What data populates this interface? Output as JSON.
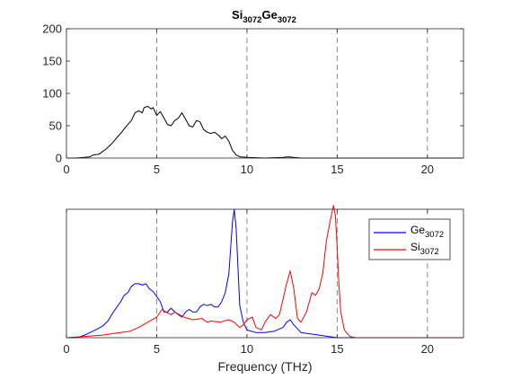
{
  "chart_data": [
    {
      "type": "line",
      "title": {
        "base1": "Si",
        "sub1": "3072",
        "base2": "Ge",
        "sub2": "3072"
      },
      "xlabel": "",
      "ylabel": "",
      "xlim": [
        0,
        22
      ],
      "ylim": [
        0,
        200
      ],
      "xticks": [
        0,
        5,
        10,
        15,
        20
      ],
      "yticks": [
        0,
        50,
        100,
        150,
        200
      ],
      "vlines": [
        5,
        10,
        15,
        20
      ],
      "grid": false,
      "series": [
        {
          "color": "#000000",
          "x": [
            0,
            0.5,
            1.0,
            1.3,
            1.5,
            1.8,
            2.0,
            2.2,
            2.5,
            2.8,
            3.0,
            3.2,
            3.4,
            3.6,
            3.8,
            4.0,
            4.2,
            4.3,
            4.5,
            4.7,
            4.8,
            5.0,
            5.2,
            5.4,
            5.6,
            5.8,
            6.0,
            6.2,
            6.4,
            6.6,
            6.8,
            7.0,
            7.2,
            7.4,
            7.6,
            7.8,
            8.0,
            8.2,
            8.4,
            8.6,
            8.8,
            9.0,
            9.2,
            9.4,
            9.6,
            10.0,
            11.0,
            12.0,
            12.3,
            12.6,
            13.0,
            14.0,
            15.0,
            16.0,
            18.0,
            20.0,
            22.0
          ],
          "values": [
            0,
            0,
            1,
            2,
            5,
            6,
            10,
            14,
            22,
            32,
            38,
            45,
            52,
            58,
            70,
            73,
            70,
            78,
            80,
            76,
            78,
            66,
            72,
            62,
            52,
            50,
            58,
            62,
            70,
            60,
            50,
            48,
            58,
            56,
            44,
            40,
            38,
            40,
            36,
            30,
            34,
            26,
            12,
            5,
            2,
            1,
            0,
            1,
            2,
            1,
            0,
            0,
            0,
            0,
            0,
            0,
            0
          ]
        }
      ]
    },
    {
      "type": "line",
      "title": "",
      "xlabel": "Frequency (THz)",
      "ylabel": "",
      "xlim": [
        0,
        22
      ],
      "ylim": [
        0,
        1
      ],
      "xticks": [
        0,
        5,
        10,
        15,
        20
      ],
      "yticks": [],
      "vlines": [
        5,
        10,
        15,
        20
      ],
      "grid": false,
      "legend_position": "top-right",
      "series": [
        {
          "name_base": "Ge",
          "name_sub": "3072",
          "color": "#0000ff",
          "x": [
            0,
            0.5,
            0.8,
            1.0,
            1.3,
            1.6,
            2.0,
            2.3,
            2.6,
            2.8,
            3.0,
            3.2,
            3.4,
            3.6,
            3.8,
            4.0,
            4.2,
            4.4,
            4.6,
            4.8,
            5.0,
            5.2,
            5.4,
            5.6,
            5.8,
            6.0,
            6.2,
            6.4,
            6.6,
            6.8,
            7.0,
            7.2,
            7.4,
            7.6,
            7.8,
            8.0,
            8.2,
            8.4,
            8.6,
            8.8,
            9.0,
            9.1,
            9.2,
            9.3,
            9.4,
            9.5,
            9.6,
            9.8,
            10.0,
            10.5,
            11.0,
            11.5,
            12.0,
            12.2,
            12.4,
            12.6,
            13.0,
            13.5,
            14.0,
            14.5,
            15.0,
            15.5,
            16.0,
            18.0,
            20.0,
            22.0
          ],
          "values": [
            0,
            0,
            0.01,
            0.02,
            0.04,
            0.06,
            0.09,
            0.13,
            0.2,
            0.24,
            0.28,
            0.33,
            0.35,
            0.4,
            0.42,
            0.42,
            0.41,
            0.42,
            0.38,
            0.36,
            0.32,
            0.28,
            0.2,
            0.2,
            0.23,
            0.2,
            0.18,
            0.16,
            0.2,
            0.22,
            0.2,
            0.2,
            0.24,
            0.26,
            0.25,
            0.26,
            0.24,
            0.24,
            0.28,
            0.35,
            0.5,
            0.7,
            0.9,
            1.0,
            0.85,
            0.55,
            0.25,
            0.12,
            0.06,
            0.04,
            0.04,
            0.05,
            0.08,
            0.12,
            0.14,
            0.1,
            0.04,
            0.03,
            0.02,
            0.01,
            0,
            0,
            0,
            0,
            0,
            0
          ]
        },
        {
          "name_base": "Si",
          "name_sub": "3072",
          "color": "#ff0000",
          "x": [
            0,
            1.0,
            2.0,
            3.0,
            3.5,
            4.0,
            4.5,
            5.0,
            5.3,
            5.5,
            5.8,
            6.0,
            6.5,
            7.0,
            7.5,
            7.8,
            8.0,
            8.5,
            9.0,
            9.3,
            9.6,
            9.8,
            10.0,
            10.3,
            10.5,
            10.8,
            11.0,
            11.3,
            11.6,
            11.8,
            12.0,
            12.2,
            12.4,
            12.6,
            12.8,
            13.0,
            13.3,
            13.6,
            13.8,
            14.0,
            14.2,
            14.4,
            14.6,
            14.8,
            14.9,
            15.0,
            15.1,
            15.2,
            15.4,
            15.7,
            16.0,
            18.0,
            20.0,
            22.0
          ],
          "values": [
            0,
            0.01,
            0.02,
            0.04,
            0.05,
            0.08,
            0.12,
            0.16,
            0.22,
            0.2,
            0.18,
            0.2,
            0.16,
            0.14,
            0.15,
            0.12,
            0.13,
            0.12,
            0.14,
            0.12,
            0.08,
            0.1,
            0.14,
            0.16,
            0.08,
            0.06,
            0.12,
            0.18,
            0.15,
            0.18,
            0.3,
            0.42,
            0.52,
            0.38,
            0.15,
            0.12,
            0.2,
            0.35,
            0.33,
            0.38,
            0.5,
            0.75,
            0.9,
            1.03,
            0.95,
            0.7,
            0.4,
            0.2,
            0.06,
            0.01,
            0,
            0,
            0,
            0
          ]
        }
      ]
    }
  ]
}
